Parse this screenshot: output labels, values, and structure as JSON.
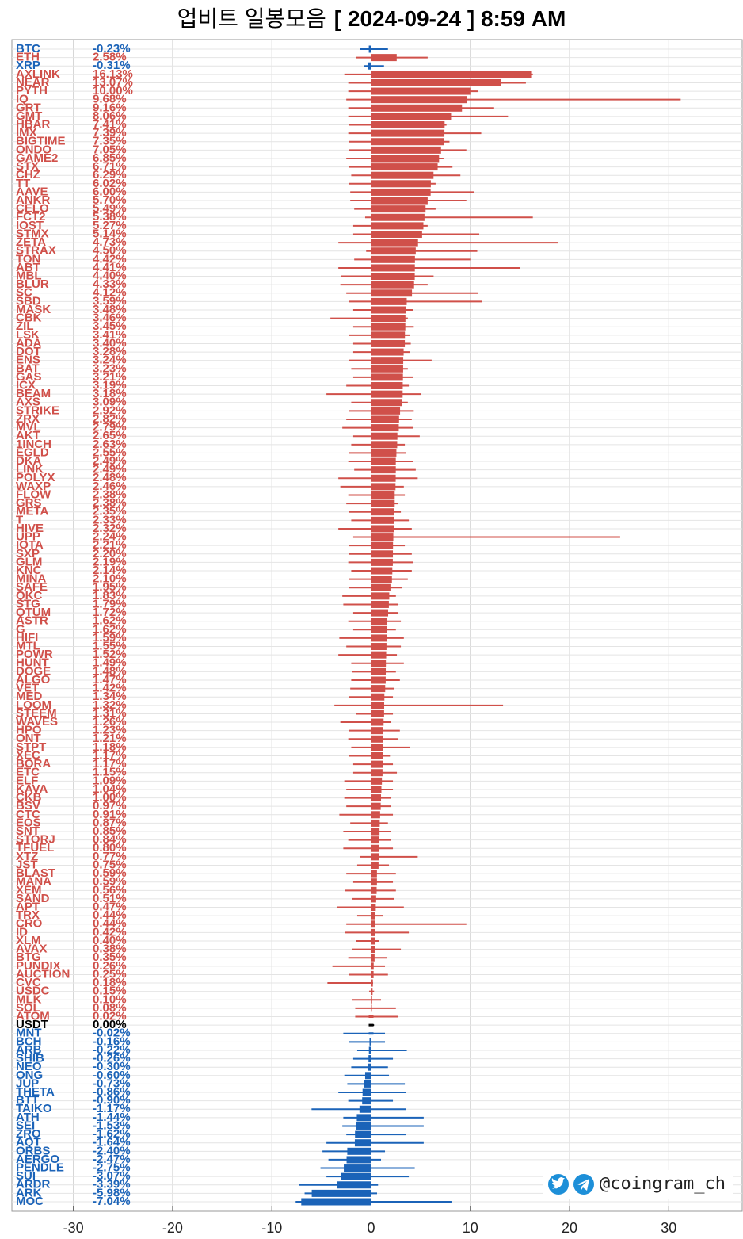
{
  "chart_data": {
    "type": "bar",
    "orientation": "horizontal",
    "title": "업비트 일봉모음",
    "subtitle": "[ 2024-09-24 ]  8:59 AM",
    "watermark": "@coingram_ch",
    "up_color": "#d0504a",
    "down_color": "#1b63b8",
    "zero_color": "#000000",
    "xlim": [
      -36.2,
      37.4
    ],
    "xticks": [
      -30,
      -20,
      -10,
      0,
      10,
      20,
      30
    ],
    "grid": true,
    "categories": [
      "BTC",
      "ETH",
      "XRP",
      "AXLINK",
      "NEAR",
      "PYTH",
      "IQ",
      "GRT",
      "GMT",
      "HBAR",
      "IMX",
      "BIGTIME",
      "ONDO",
      "GAME2",
      "STX",
      "CHZ",
      "TT",
      "AAVE",
      "ANKR",
      "CELO",
      "FCT2",
      "IOST",
      "STMX",
      "ZETA",
      "STRAX",
      "TON",
      "ABT",
      "MBL",
      "BLUR",
      "SC",
      "SBD",
      "MASK",
      "CBK",
      "ZIL",
      "LSK",
      "ADA",
      "DOT",
      "ENS",
      "BAT",
      "GAS",
      "ICX",
      "BEAM",
      "AXS",
      "STRIKE",
      "ZRX",
      "MVL",
      "AKT",
      "1INCH",
      "EGLD",
      "DKA",
      "LINK",
      "POLYX",
      "WAXP",
      "FLOW",
      "GRS",
      "META",
      "T",
      "HIVE",
      "UPP",
      "IOTA",
      "SXP",
      "GLM",
      "KNC",
      "MINA",
      "SAFE",
      "QKC",
      "STG",
      "QTUM",
      "ASTR",
      "G",
      "HIFI",
      "MTL",
      "POWR",
      "HUNT",
      "DOGE",
      "ALGO",
      "VET",
      "MED",
      "LOOM",
      "STEEM",
      "WAVES",
      "HPO",
      "ONT",
      "STPT",
      "XEC",
      "BORA",
      "ETC",
      "ELF",
      "KAVA",
      "CKB",
      "BSV",
      "CTC",
      "EOS",
      "SNT",
      "STORJ",
      "TFUEL",
      "XTZ",
      "JST",
      "BLAST",
      "MANA",
      "XEM",
      "SAND",
      "APT",
      "TRX",
      "CRO",
      "ID",
      "XLM",
      "AVAX",
      "BTG",
      "PUNDIX",
      "AUCTION",
      "CVC",
      "USDC",
      "MLK",
      "SOL",
      "ATOM",
      "USDT",
      "MNT",
      "BCH",
      "ARB",
      "SHIB",
      "NEO",
      "ONG",
      "JUP",
      "THETA",
      "BTT",
      "TAIKO",
      "ATH",
      "SEI",
      "ZRO",
      "AQT",
      "ORBS",
      "AERGO",
      "PENDLE",
      "SUI",
      "ARDR",
      "ARK",
      "MOC"
    ],
    "values": [
      -0.23,
      2.58,
      -0.31,
      16.13,
      13.07,
      10.0,
      9.68,
      9.16,
      8.06,
      7.41,
      7.39,
      7.35,
      7.05,
      6.85,
      6.71,
      6.29,
      6.02,
      6.0,
      5.7,
      5.49,
      5.38,
      5.27,
      5.14,
      4.73,
      4.5,
      4.42,
      4.41,
      4.4,
      4.33,
      4.12,
      3.59,
      3.48,
      3.46,
      3.45,
      3.41,
      3.4,
      3.28,
      3.24,
      3.23,
      3.21,
      3.19,
      3.18,
      3.09,
      2.92,
      2.82,
      2.79,
      2.65,
      2.63,
      2.55,
      2.49,
      2.49,
      2.48,
      2.46,
      2.38,
      2.38,
      2.35,
      2.33,
      2.32,
      2.24,
      2.21,
      2.2,
      2.19,
      2.14,
      2.1,
      1.95,
      1.83,
      1.79,
      1.72,
      1.62,
      1.62,
      1.59,
      1.55,
      1.52,
      1.49,
      1.48,
      1.47,
      1.42,
      1.34,
      1.32,
      1.31,
      1.26,
      1.23,
      1.21,
      1.18,
      1.17,
      1.17,
      1.15,
      1.09,
      1.04,
      1.0,
      0.97,
      0.91,
      0.87,
      0.85,
      0.84,
      0.8,
      0.77,
      0.75,
      0.59,
      0.59,
      0.56,
      0.51,
      0.47,
      0.44,
      0.44,
      0.42,
      0.4,
      0.38,
      0.35,
      0.26,
      0.25,
      0.18,
      0.15,
      0.1,
      0.08,
      0.02,
      0.0,
      -0.02,
      -0.16,
      -0.22,
      -0.26,
      -0.3,
      -0.6,
      -0.73,
      -0.86,
      -0.9,
      -1.17,
      -1.44,
      -1.53,
      -1.62,
      -1.64,
      -2.4,
      -2.47,
      -2.75,
      -3.07,
      -3.39,
      -5.98,
      -7.04
    ],
    "value_labels": [
      "-0.23%",
      "2.58%",
      "-0.31%",
      "16.13%",
      "13.07%",
      "10.00%",
      "9.68%",
      "9.16%",
      "8.06%",
      "7.41%",
      "7.39%",
      "7.35%",
      "7.05%",
      "6.85%",
      "6.71%",
      "6.29%",
      "6.02%",
      "6.00%",
      "5.70%",
      "5.49%",
      "5.38%",
      "5.27%",
      "5.14%",
      "4.73%",
      "4.50%",
      "4.42%",
      "4.41%",
      "4.40%",
      "4.33%",
      "4.12%",
      "3.59%",
      "3.48%",
      "3.46%",
      "3.45%",
      "3.41%",
      "3.40%",
      "3.28%",
      "3.24%",
      "3.23%",
      "3.21%",
      "3.19%",
      "3.18%",
      "3.09%",
      "2.92%",
      "2.82%",
      "2.79%",
      "2.65%",
      "2.63%",
      "2.55%",
      "2.49%",
      "2.49%",
      "2.48%",
      "2.46%",
      "2.38%",
      "2.38%",
      "2.35%",
      "2.33%",
      "2.32%",
      "2.24%",
      "2.21%",
      "2.20%",
      "2.19%",
      "2.14%",
      "2.10%",
      "1.95%",
      "1.83%",
      "1.79%",
      "1.72%",
      "1.62%",
      "1.62%",
      "1.59%",
      "1.55%",
      "1.52%",
      "1.49%",
      "1.48%",
      "1.47%",
      "1.42%",
      "1.34%",
      "1.32%",
      "1.31%",
      "1.26%",
      "1.23%",
      "1.21%",
      "1.18%",
      "1.17%",
      "1.17%",
      "1.15%",
      "1.09%",
      "1.04%",
      "1.00%",
      "0.97%",
      "0.91%",
      "0.87%",
      "0.85%",
      "0.84%",
      "0.80%",
      "0.77%",
      "0.75%",
      "0.59%",
      "0.59%",
      "0.56%",
      "0.51%",
      "0.47%",
      "0.44%",
      "0.44%",
      "0.42%",
      "0.40%",
      "0.38%",
      "0.35%",
      "0.26%",
      "0.25%",
      "0.18%",
      "0.15%",
      "0.10%",
      "0.08%",
      "0.02%",
      "0.00%",
      "-0.02%",
      "-0.16%",
      "-0.22%",
      "-0.26%",
      "-0.30%",
      "-0.60%",
      "-0.73%",
      "-0.86%",
      "-0.90%",
      "-1.17%",
      "-1.44%",
      "-1.53%",
      "-1.62%",
      "-1.64%",
      "-2.40%",
      "-2.47%",
      "-2.75%",
      "-3.07%",
      "-3.39%",
      "-5.98%",
      "-7.04%"
    ],
    "low": [
      -1.1,
      -1.5,
      -0.7,
      -2.7,
      -2.3,
      -2.3,
      -2.5,
      -2.3,
      -2.3,
      -2.2,
      -2.3,
      -2.2,
      -2.2,
      -2.5,
      -2.2,
      -2.0,
      -2.2,
      -2.1,
      -2.1,
      -1.7,
      -0.6,
      -1.8,
      -1.8,
      -3.3,
      -0.5,
      -1.7,
      -3.3,
      -3.0,
      -3.1,
      -2.5,
      -2.2,
      -1.8,
      -4.1,
      -1.8,
      -2.2,
      -1.8,
      -1.8,
      -2.2,
      -2.0,
      -1.8,
      -2.5,
      -4.5,
      -2.0,
      -2.2,
      -2.5,
      -2.9,
      -1.8,
      -2.0,
      -2.2,
      -2.3,
      -1.7,
      -3.3,
      -3.1,
      -2.3,
      -2.5,
      -2.2,
      -2.0,
      -3.3,
      -1.8,
      -2.2,
      -2.2,
      -2.3,
      -2.0,
      -2.2,
      -2.2,
      -2.9,
      -2.8,
      -1.8,
      -2.3,
      -1.8,
      -3.2,
      -2.5,
      -3.3,
      -2.0,
      -1.9,
      -2.0,
      -2.1,
      -2.2,
      -3.7,
      -1.5,
      -3.1,
      -2.2,
      -2.3,
      -2.0,
      -2.2,
      -1.8,
      -1.8,
      -2.7,
      -2.5,
      -2.7,
      -2.5,
      -3.2,
      -2.1,
      -2.8,
      -2.3,
      -2.8,
      -1.1,
      -1.4,
      -2.5,
      -1.8,
      -2.6,
      -1.9,
      -3.4,
      -1.4,
      -2.5,
      -2.6,
      -1.5,
      -1.9,
      -2.3,
      -3.9,
      -2.2,
      -4.4,
      -0.2,
      -1.9,
      -1.6,
      -1.6,
      -0.2,
      -2.8,
      -2.2,
      -1.4,
      -1.8,
      -2.0,
      -2.7,
      -2.4,
      -3.3,
      -2.3,
      -6.0,
      -2.8,
      -2.9,
      -2.5,
      -4.5,
      -4.9,
      -4.3,
      -5.1,
      -4.5,
      -7.3,
      -6.7,
      -7.6
    ],
    "high": [
      1.7,
      5.7,
      1.3,
      16.3,
      15.6,
      10.8,
      31.2,
      12.4,
      13.8,
      7.6,
      11.1,
      7.9,
      9.6,
      7.3,
      8.2,
      9.0,
      6.5,
      10.4,
      9.6,
      6.5,
      16.3,
      5.7,
      10.9,
      18.8,
      10.7,
      10.0,
      15.0,
      6.3,
      5.7,
      10.8,
      11.2,
      4.2,
      3.7,
      4.3,
      3.9,
      4.0,
      3.9,
      6.1,
      3.7,
      4.2,
      3.8,
      5.0,
      3.7,
      4.3,
      4.1,
      4.2,
      4.9,
      3.4,
      3.5,
      4.2,
      4.5,
      4.7,
      3.3,
      3.4,
      2.7,
      3.0,
      3.8,
      4.1,
      25.1,
      3.4,
      4.1,
      4.2,
      4.1,
      3.7,
      3.1,
      2.5,
      2.7,
      2.7,
      3.0,
      2.5,
      3.3,
      3.0,
      2.6,
      3.3,
      2.5,
      2.9,
      2.3,
      2.2,
      13.3,
      2.2,
      2.0,
      2.9,
      2.7,
      3.9,
      1.9,
      2.2,
      2.6,
      2.2,
      2.2,
      2.0,
      2.0,
      2.2,
      1.7,
      2.0,
      2.0,
      2.2,
      4.7,
      1.8,
      2.5,
      2.2,
      2.5,
      2.3,
      3.3,
      1.2,
      9.6,
      3.8,
      0.8,
      3.0,
      1.6,
      1.4,
      1.7,
      0.2,
      0.3,
      1.0,
      2.5,
      2.7,
      0.3,
      1.4,
      1.4,
      3.6,
      2.2,
      1.7,
      1.8,
      3.4,
      3.5,
      2.2,
      3.5,
      5.3,
      5.3,
      3.5,
      5.3,
      1.4,
      1.0,
      4.4,
      3.8,
      0.7,
      0.6,
      8.1
    ]
  }
}
